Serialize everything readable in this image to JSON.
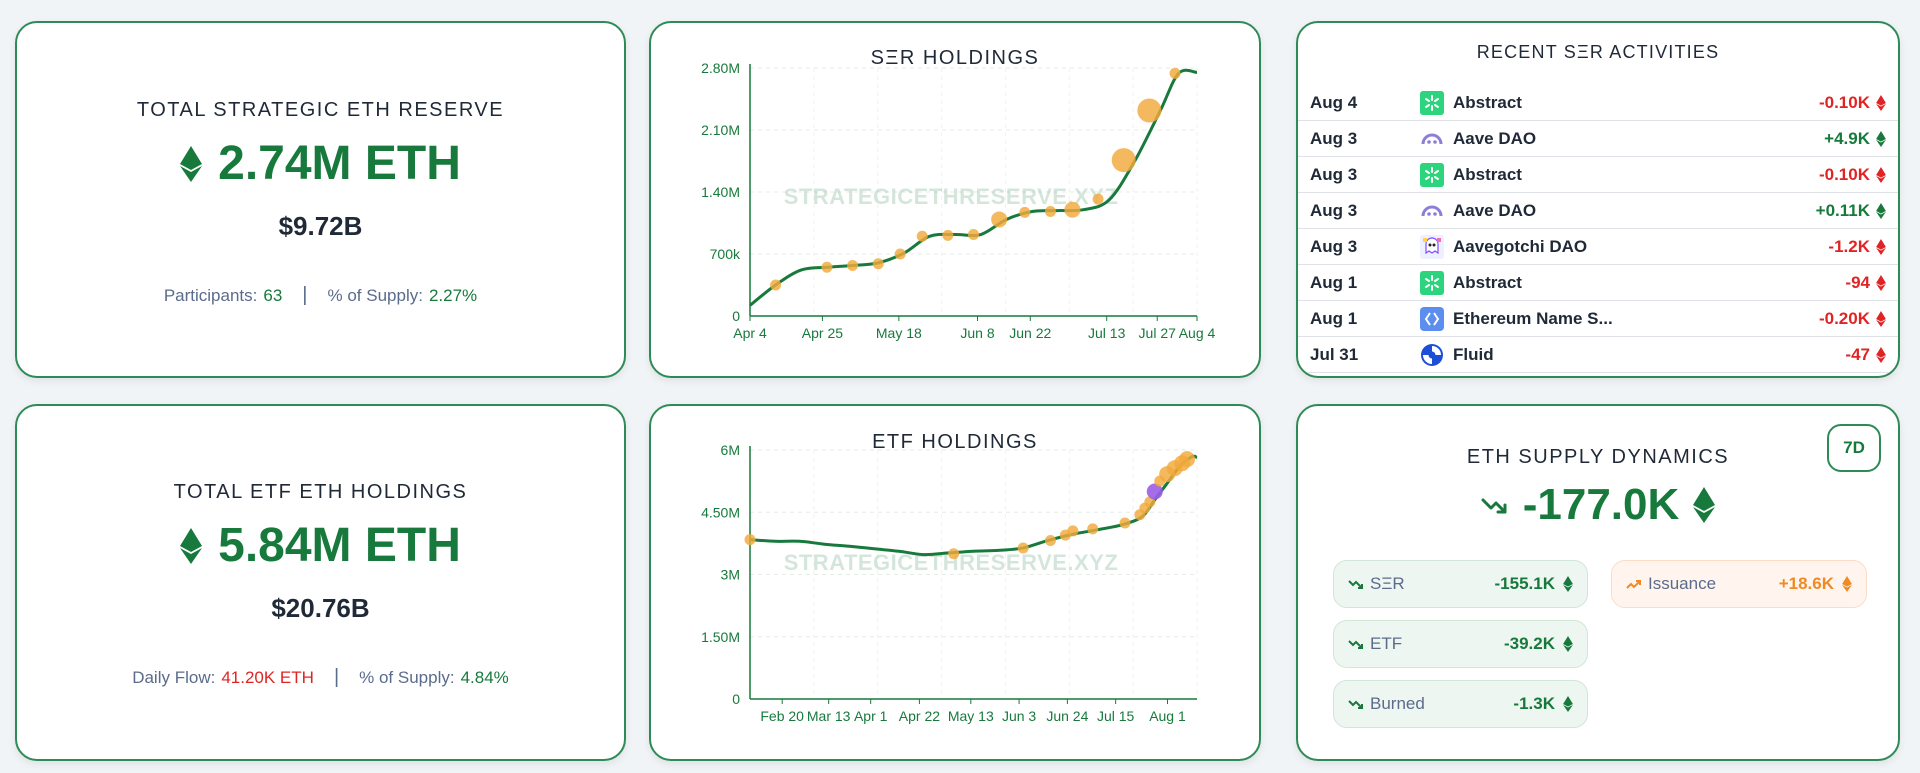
{
  "colors": {
    "green": "#177a3c",
    "red": "#e02424",
    "orange": "#f08a24",
    "marker": "#f2a93b",
    "purple": "#9b5de5",
    "border": "#2e8b57"
  },
  "ser_reserve": {
    "title": "TOTAL STRATEGIC ETH RESERVE",
    "amount": "2.74M ETH",
    "usd": "$9.72B",
    "participants_label": "Participants:",
    "participants_value": "63",
    "supply_label": "% of Supply:",
    "supply_value": "2.27%"
  },
  "etf_holdings": {
    "title": "TOTAL ETF ETH HOLDINGS",
    "amount": "5.84M ETH",
    "usd": "$20.76B",
    "flow_label": "Daily Flow:",
    "flow_value": "41.20K ETH",
    "supply_label": "% of Supply:",
    "supply_value": "4.84%"
  },
  "ser_chart": {
    "title": "SΞR HOLDINGS",
    "watermark": "STRATEGICETHRESERVE.XYZ",
    "chart_data": {
      "type": "line",
      "title": "SΞR HOLDINGS",
      "x_tick_labels": [
        "Apr 4",
        "Apr 25",
        "May 18",
        "Jun 8",
        "Jun 22",
        "Jul 13",
        "Jul 27",
        "Aug 4"
      ],
      "y_tick_labels": [
        "0",
        "700k",
        "1.40M",
        "2.10M",
        "2.80M"
      ],
      "ylim": [
        0,
        2800000
      ],
      "x_range_days": [
        0,
        122
      ],
      "series": [
        {
          "points": [
            [
              0,
              120000
            ],
            [
              7,
              350000
            ],
            [
              14,
              520000
            ],
            [
              21,
              550000
            ],
            [
              28,
              570000
            ],
            [
              35,
              600000
            ],
            [
              42,
              710000
            ],
            [
              49,
              900000
            ],
            [
              56,
              920000
            ],
            [
              63,
              920000
            ],
            [
              70,
              1090000
            ],
            [
              77,
              1180000
            ],
            [
              84,
              1190000
            ],
            [
              91,
              1200000
            ],
            [
              98,
              1310000
            ],
            [
              105,
              1750000
            ],
            [
              112,
              2320000
            ],
            [
              117,
              2740000
            ],
            [
              122,
              2750000
            ]
          ]
        }
      ],
      "markers": [
        {
          "x": 7,
          "y": 350000,
          "size": "small"
        },
        {
          "x": 21,
          "y": 550000,
          "size": "small"
        },
        {
          "x": 28,
          "y": 570000,
          "size": "small"
        },
        {
          "x": 35,
          "y": 590000,
          "size": "small"
        },
        {
          "x": 41,
          "y": 700000,
          "size": "small"
        },
        {
          "x": 47,
          "y": 900000,
          "size": "small"
        },
        {
          "x": 54,
          "y": 910000,
          "size": "small"
        },
        {
          "x": 61,
          "y": 920000,
          "size": "small"
        },
        {
          "x": 68,
          "y": 1090000,
          "size": "medium"
        },
        {
          "x": 75,
          "y": 1170000,
          "size": "small"
        },
        {
          "x": 82,
          "y": 1180000,
          "size": "small"
        },
        {
          "x": 88,
          "y": 1200000,
          "size": "medium"
        },
        {
          "x": 95,
          "y": 1320000,
          "size": "small"
        },
        {
          "x": 102,
          "y": 1760000,
          "size": "large"
        },
        {
          "x": 109,
          "y": 2320000,
          "size": "large"
        },
        {
          "x": 116,
          "y": 2740000,
          "size": "small"
        }
      ],
      "grid": true
    }
  },
  "etf_chart": {
    "title": "ETF HOLDINGS",
    "watermark": "STRATEGICETHRESERVE.XYZ",
    "chart_data": {
      "type": "line",
      "title": "ETF HOLDINGS",
      "x_tick_labels": [
        "Feb 20",
        "Mar 13",
        "Apr 1",
        "Apr 22",
        "May 13",
        "Jun 3",
        "Jun 24",
        "Jul 15",
        "Aug 1"
      ],
      "y_tick_labels": [
        "0",
        "1.50M",
        "3M",
        "4.50M",
        "6M"
      ],
      "ylim": [
        0,
        6000000
      ],
      "x_range_days": [
        0,
        180
      ],
      "series": [
        {
          "points": [
            [
              0,
              3840000
            ],
            [
              10,
              3800000
            ],
            [
              20,
              3800000
            ],
            [
              30,
              3730000
            ],
            [
              40,
              3680000
            ],
            [
              50,
              3620000
            ],
            [
              60,
              3560000
            ],
            [
              70,
              3480000
            ],
            [
              80,
              3520000
            ],
            [
              90,
              3560000
            ],
            [
              100,
              3580000
            ],
            [
              110,
              3640000
            ],
            [
              120,
              3820000
            ],
            [
              130,
              3970000
            ],
            [
              140,
              4080000
            ],
            [
              150,
              4200000
            ],
            [
              158,
              4400000
            ],
            [
              163,
              4800000
            ],
            [
              168,
              5200000
            ],
            [
              173,
              5600000
            ],
            [
              178,
              5840000
            ],
            [
              180,
              5820000
            ]
          ]
        }
      ],
      "markers": [
        {
          "x": 0,
          "y": 3840000,
          "size": "small"
        },
        {
          "x": 82,
          "y": 3500000,
          "size": "small"
        },
        {
          "x": 110,
          "y": 3640000,
          "size": "small"
        },
        {
          "x": 121,
          "y": 3820000,
          "size": "small"
        },
        {
          "x": 127,
          "y": 3950000,
          "size": "small"
        },
        {
          "x": 130,
          "y": 4050000,
          "size": "small"
        },
        {
          "x": 138,
          "y": 4100000,
          "size": "small"
        },
        {
          "x": 151,
          "y": 4240000,
          "size": "small"
        },
        {
          "x": 157,
          "y": 4440000,
          "size": "small"
        },
        {
          "x": 159,
          "y": 4600000,
          "size": "small"
        },
        {
          "x": 161,
          "y": 4750000,
          "size": "small"
        },
        {
          "x": 163,
          "y": 5000000,
          "size": "medium",
          "color": "purple"
        },
        {
          "x": 165,
          "y": 5250000,
          "size": "small"
        },
        {
          "x": 168,
          "y": 5420000,
          "size": "medium"
        },
        {
          "x": 171,
          "y": 5560000,
          "size": "medium"
        },
        {
          "x": 174,
          "y": 5680000,
          "size": "medium"
        },
        {
          "x": 176,
          "y": 5780000,
          "size": "medium"
        }
      ],
      "grid": true
    }
  },
  "activities": {
    "title": "RECENT SΞR ACTIVITIES",
    "rows": [
      {
        "date": "Aug 4",
        "name": "Abstract",
        "amount": "-0.10K",
        "sign": "neg",
        "icon": "abstract-icon"
      },
      {
        "date": "Aug 3",
        "name": "Aave DAO",
        "amount": "+4.9K",
        "sign": "pos",
        "icon": "aave-icon"
      },
      {
        "date": "Aug 3",
        "name": "Abstract",
        "amount": "-0.10K",
        "sign": "neg",
        "icon": "abstract-icon"
      },
      {
        "date": "Aug 3",
        "name": "Aave DAO",
        "amount": "+0.11K",
        "sign": "pos",
        "icon": "aave-icon"
      },
      {
        "date": "Aug 3",
        "name": "Aavegotchi DAO",
        "amount": "-1.2K",
        "sign": "neg",
        "icon": "aavegotchi-icon"
      },
      {
        "date": "Aug 1",
        "name": "Abstract",
        "amount": "-94",
        "sign": "neg",
        "icon": "abstract-icon"
      },
      {
        "date": "Aug 1",
        "name": "Ethereum Name S...",
        "amount": "-0.20K",
        "sign": "neg",
        "icon": "ens-icon"
      },
      {
        "date": "Jul 31",
        "name": "Fluid",
        "amount": "-47",
        "sign": "neg",
        "icon": "fluid-icon"
      }
    ]
  },
  "supply_dynamics": {
    "title": "ETH SUPPLY DYNAMICS",
    "period_button": "7D",
    "total": "-177.0K",
    "pills": {
      "ser": {
        "label": "SΞR",
        "value": "-155.1K"
      },
      "etf": {
        "label": "ETF",
        "value": "-39.2K"
      },
      "burned": {
        "label": "Burned",
        "value": "-1.3K"
      },
      "issuance": {
        "label": "Issuance",
        "value": "+18.6K"
      }
    }
  }
}
